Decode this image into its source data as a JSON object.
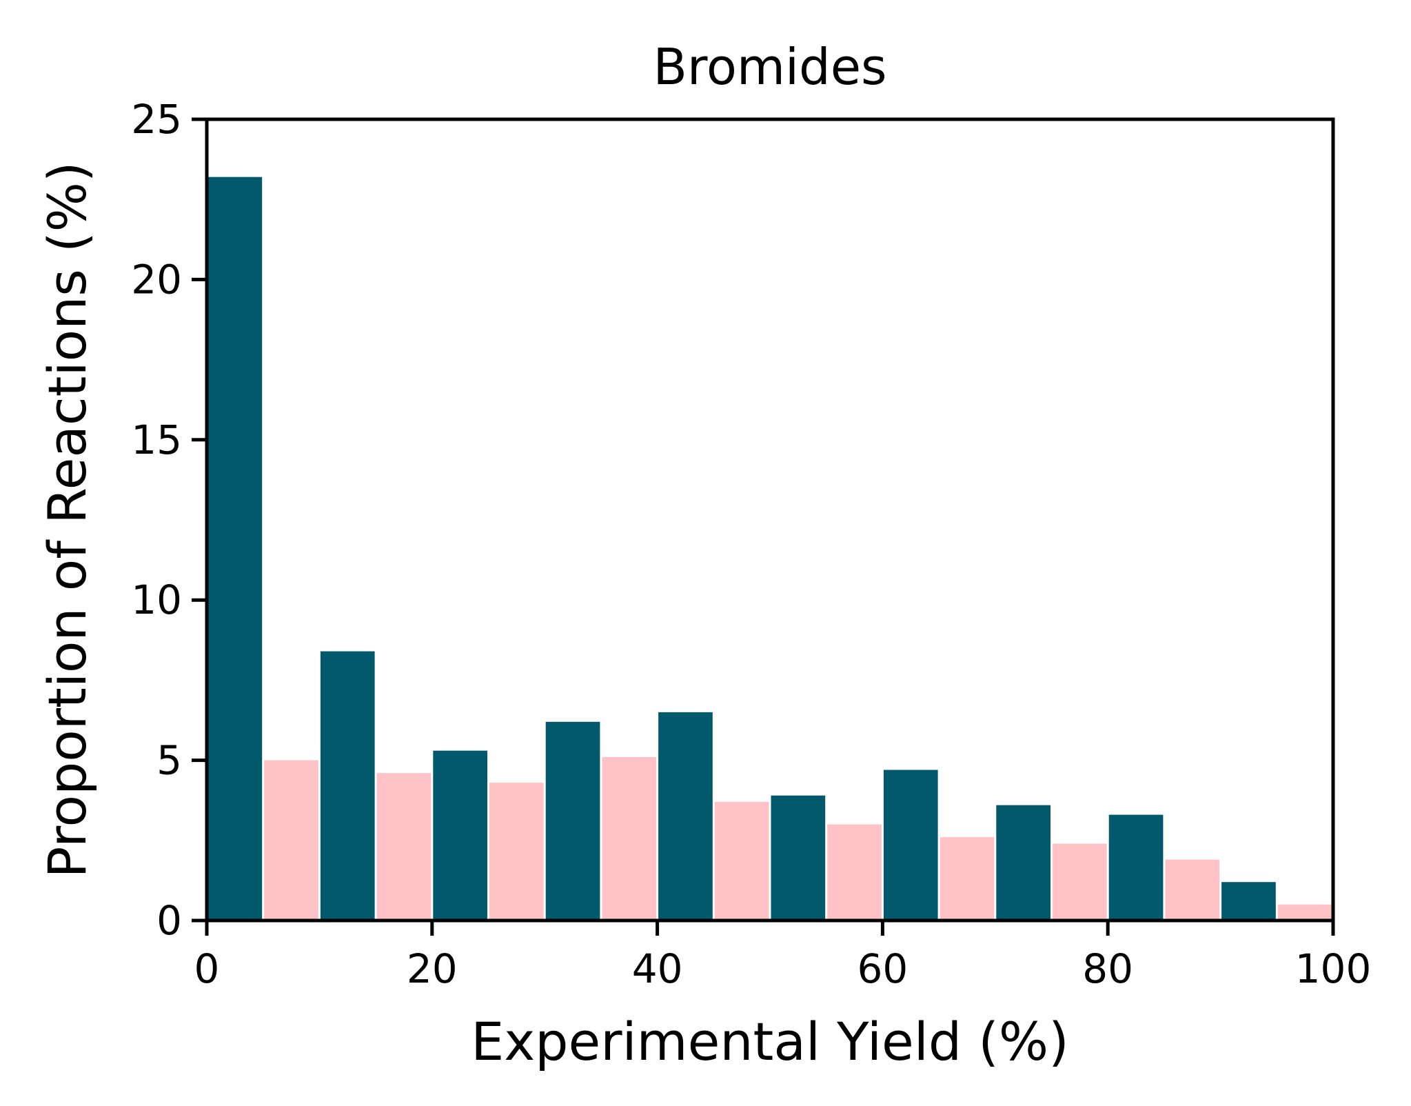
{
  "chart_data": {
    "type": "bar",
    "title": "Bromides",
    "xlabel": "Experimental Yield (%)",
    "ylabel": "Proportion of Reactions (%)",
    "xlim": [
      0,
      100
    ],
    "ylim": [
      0,
      25
    ],
    "xticks": [
      "0",
      "20",
      "40",
      "60",
      "80",
      "100"
    ],
    "yticks": [
      "0",
      "5",
      "10",
      "15",
      "20",
      "25"
    ],
    "bin_width": 5,
    "grid": false,
    "legend": "none",
    "series": [
      {
        "color": "#02596b",
        "x": [
          0,
          10,
          20,
          30,
          40,
          50,
          60,
          70,
          80,
          90
        ],
        "values": [
          23.2,
          8.4,
          5.3,
          6.2,
          6.5,
          3.9,
          4.7,
          3.6,
          3.3,
          1.2
        ]
      },
      {
        "color": "#ffc2c7",
        "x": [
          5,
          15,
          25,
          35,
          45,
          55,
          65,
          75,
          85,
          95
        ],
        "values": [
          5.0,
          4.6,
          4.3,
          5.1,
          3.7,
          3.0,
          2.6,
          2.4,
          1.9,
          0.5
        ]
      }
    ]
  }
}
